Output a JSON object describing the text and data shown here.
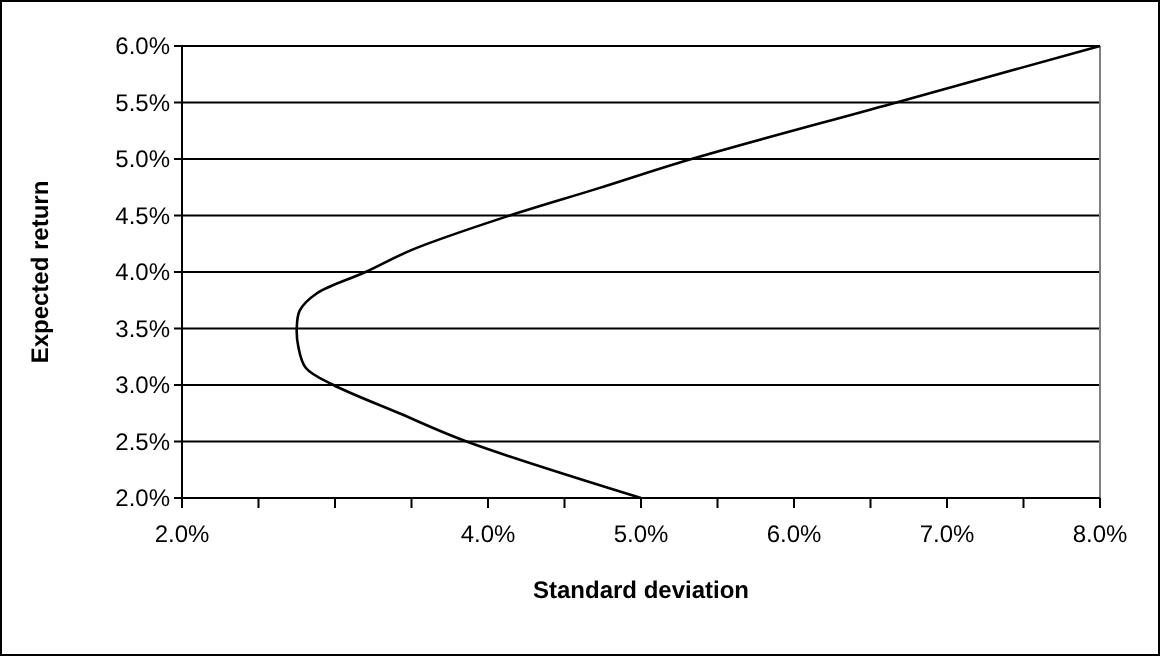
{
  "chart_data": {
    "type": "line",
    "xlabel": "Standard deviation",
    "ylabel": "Expected return",
    "series": [
      {
        "color": "#000000",
        "x": [
          5.0,
          3.86,
          3.42,
          2.99,
          2.81,
          2.76,
          2.75,
          2.77,
          2.88,
          3.2,
          3.51,
          4.12,
          4.72,
          5.33,
          6.64,
          8.0
        ],
        "values": [
          2.0,
          2.5,
          2.75,
          3.0,
          3.15,
          3.34,
          3.5,
          3.66,
          3.81,
          4.0,
          4.2,
          4.49,
          4.74,
          5.0,
          5.49,
          6.0
        ]
      }
    ],
    "xlim": [
      2,
      8
    ],
    "xticks": [
      {
        "value": 2,
        "label": "2.0%"
      },
      {
        "value": 2.5,
        "label": null
      },
      {
        "value": 3,
        "label": null
      },
      {
        "value": 3.5,
        "label": null
      },
      {
        "value": 4,
        "label": "4.0%"
      },
      {
        "value": 4.5,
        "label": null
      },
      {
        "value": 5,
        "label": "5.0%"
      },
      {
        "value": 5.5,
        "label": null
      },
      {
        "value": 6,
        "label": "6.0%"
      },
      {
        "value": 6.5,
        "label": null
      },
      {
        "value": 7,
        "label": "7.0%"
      },
      {
        "value": 7.5,
        "label": null
      },
      {
        "value": 8,
        "label": "8.0%"
      }
    ],
    "ylim": [
      2,
      6
    ],
    "yticks": [
      {
        "value": 2,
        "label": "2.0%"
      },
      {
        "value": 2.5,
        "label": "2.5%"
      },
      {
        "value": 3,
        "label": "3.0%"
      },
      {
        "value": 3.5,
        "label": "3.5%"
      },
      {
        "value": 4,
        "label": "4.0%"
      },
      {
        "value": 4.5,
        "label": "4.5%"
      },
      {
        "value": 5,
        "label": "5.0%"
      },
      {
        "value": 5.5,
        "label": "5.5%"
      },
      {
        "value": 6,
        "label": "6.0%"
      }
    ],
    "grid": "y",
    "marker": "none",
    "line_style": "solid"
  }
}
